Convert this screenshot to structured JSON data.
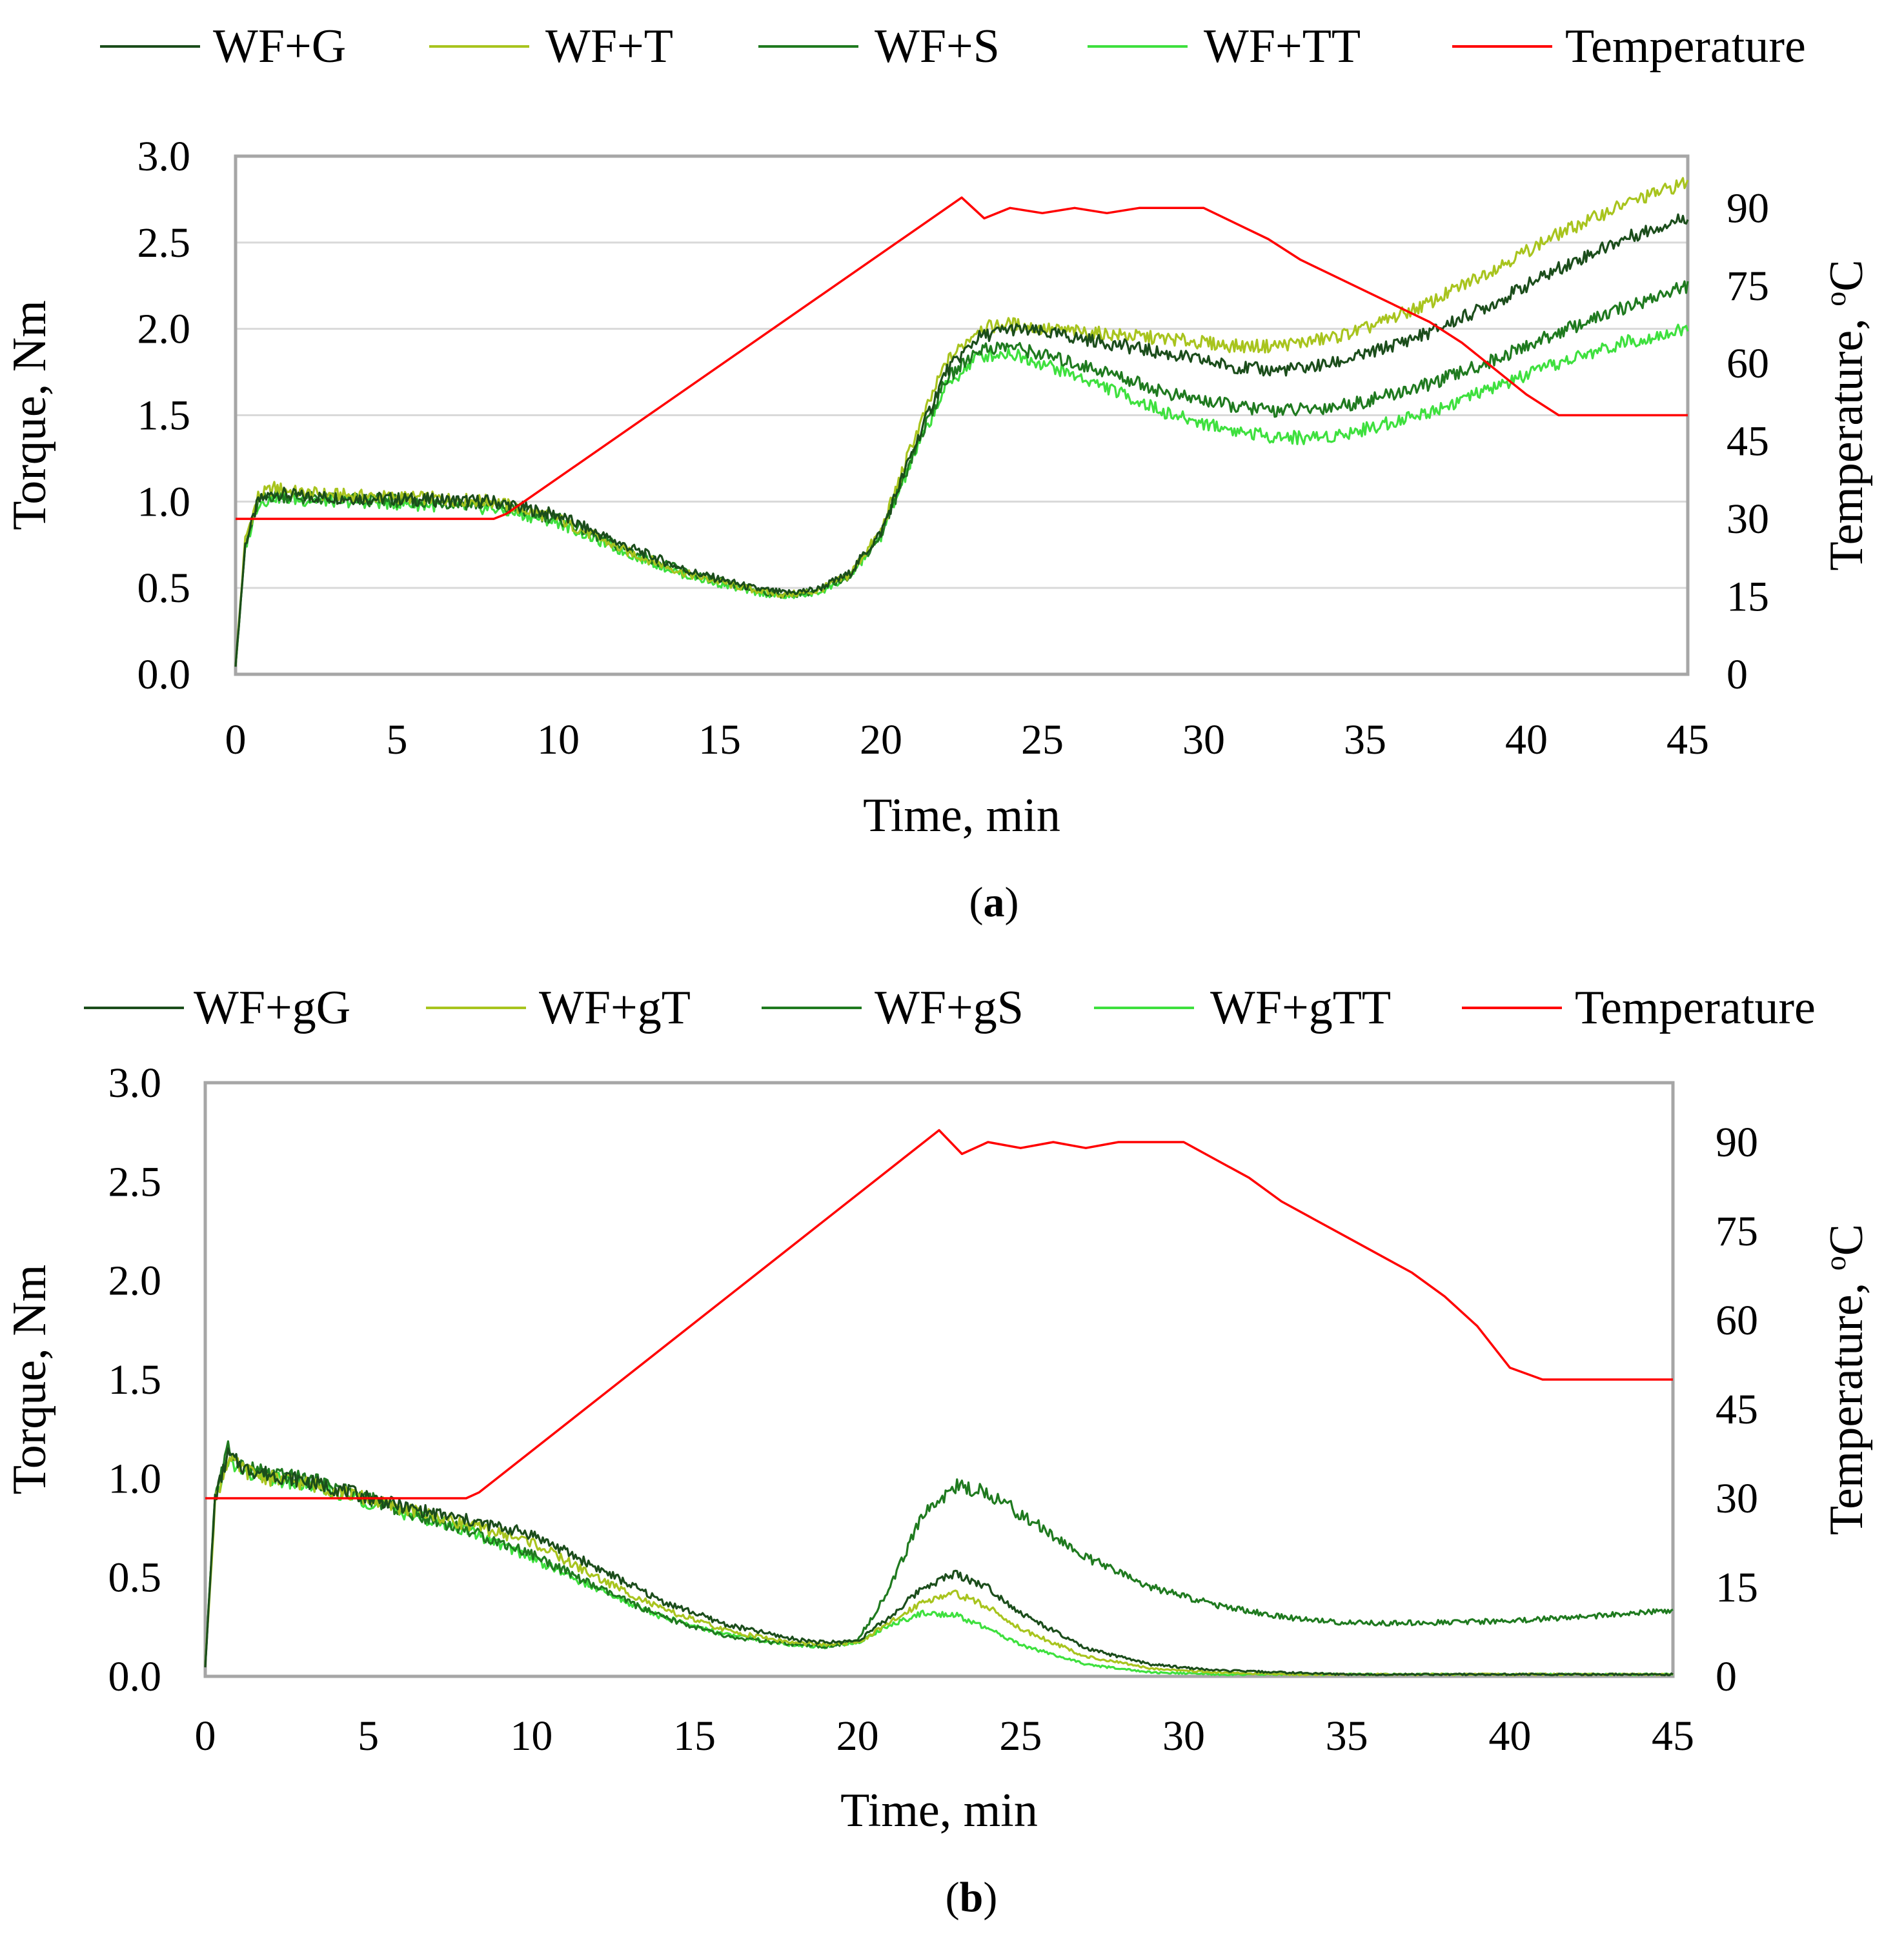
{
  "chart_data": [
    {
      "id": "a",
      "type": "line",
      "caption": [
        "(",
        "a",
        ")"
      ],
      "xlabel": "Time, min",
      "ylabel": "Torque, Nm",
      "ylabel2": "Temperature, ",
      "ylabel2_unit": "oC",
      "xlim": [
        0,
        45
      ],
      "ylim": [
        0,
        3
      ],
      "y2lim": [
        0,
        100
      ],
      "xticks": [
        "0",
        "5",
        "10",
        "15",
        "20",
        "25",
        "30",
        "35",
        "40",
        "45"
      ],
      "yticks": [
        "0.0",
        "0.5",
        "1.0",
        "1.5",
        "2.0",
        "2.5",
        "3.0"
      ],
      "y2ticks": [
        "0",
        "15",
        "30",
        "45",
        "60",
        "75",
        "90"
      ],
      "grid": true,
      "legend_position": "top",
      "series": [
        {
          "name": "WF+G",
          "color": "#1b4d1b",
          "axis": "left",
          "x": [
            0,
            0.3,
            0.7,
            1.2,
            2,
            4,
            6,
            8,
            10,
            12,
            14,
            16,
            17,
            18,
            19,
            20,
            21,
            22,
            23,
            24,
            25,
            27,
            29,
            31,
            32,
            33,
            34,
            35,
            37,
            39,
            41,
            43,
            45
          ],
          "y": [
            0.05,
            0.75,
            1.0,
            1.05,
            1.03,
            1.02,
            1.01,
            1.0,
            0.92,
            0.75,
            0.6,
            0.5,
            0.47,
            0.49,
            0.58,
            0.82,
            1.3,
            1.75,
            1.95,
            2.0,
            1.98,
            1.92,
            1.85,
            1.78,
            1.76,
            1.77,
            1.8,
            1.85,
            1.98,
            2.15,
            2.35,
            2.52,
            2.65
          ]
        },
        {
          "name": "WF+T",
          "color": "#a8c41e",
          "axis": "left",
          "x": [
            0,
            0.3,
            0.7,
            1.2,
            2,
            4,
            6,
            8,
            10,
            12,
            14,
            16,
            17,
            18,
            19,
            20,
            21,
            22,
            23,
            24,
            25,
            27,
            29,
            31,
            32,
            33,
            34,
            35,
            37,
            39,
            41,
            43,
            45
          ],
          "y": [
            0.05,
            0.78,
            1.03,
            1.08,
            1.05,
            1.03,
            1.02,
            1.0,
            0.9,
            0.72,
            0.58,
            0.49,
            0.46,
            0.48,
            0.57,
            0.83,
            1.35,
            1.8,
            2.0,
            2.03,
            2.0,
            1.97,
            1.94,
            1.9,
            1.9,
            1.92,
            1.95,
            2.0,
            2.15,
            2.35,
            2.55,
            2.72,
            2.85
          ]
        },
        {
          "name": "WF+S",
          "color": "#1f7a1f",
          "axis": "left",
          "x": [
            0,
            0.3,
            0.7,
            1.2,
            2,
            4,
            6,
            8,
            10,
            12,
            14,
            16,
            17,
            18,
            19,
            20,
            21,
            22,
            23,
            24,
            25,
            27,
            29,
            31,
            32,
            33,
            34,
            35,
            37,
            39,
            41,
            43,
            45
          ],
          "y": [
            0.05,
            0.74,
            1.0,
            1.04,
            1.02,
            1.01,
            1.0,
            0.98,
            0.9,
            0.73,
            0.59,
            0.49,
            0.46,
            0.48,
            0.57,
            0.81,
            1.28,
            1.7,
            1.88,
            1.9,
            1.85,
            1.75,
            1.62,
            1.55,
            1.53,
            1.53,
            1.55,
            1.58,
            1.68,
            1.82,
            1.98,
            2.12,
            2.25
          ]
        },
        {
          "name": "WF+TT",
          "color": "#3ee03e",
          "axis": "left",
          "x": [
            0,
            0.3,
            0.7,
            1.2,
            2,
            4,
            6,
            8,
            10,
            12,
            14,
            16,
            17,
            18,
            19,
            20,
            21,
            22,
            23,
            24,
            25,
            27,
            29,
            31,
            32,
            33,
            34,
            35,
            37,
            39,
            41,
            43,
            45
          ],
          "y": [
            0.05,
            0.73,
            0.99,
            1.03,
            1.01,
            1.0,
            0.98,
            0.96,
            0.88,
            0.71,
            0.57,
            0.48,
            0.45,
            0.47,
            0.56,
            0.8,
            1.26,
            1.66,
            1.84,
            1.86,
            1.8,
            1.66,
            1.5,
            1.41,
            1.38,
            1.37,
            1.38,
            1.42,
            1.52,
            1.66,
            1.8,
            1.92,
            2.0
          ]
        },
        {
          "name": "Temperature",
          "color": "#ff0000",
          "axis": "right",
          "x": [
            0,
            8,
            8.4,
            22.5,
            23.2,
            24,
            25,
            26,
            27,
            28,
            29,
            30,
            31,
            32,
            33,
            34,
            35,
            36,
            37,
            38,
            39,
            40,
            41,
            42,
            43,
            44,
            45
          ],
          "y": [
            30,
            30,
            31,
            92,
            88,
            90,
            89,
            90,
            89,
            90,
            90,
            90,
            87,
            84,
            80,
            77,
            74,
            71,
            68,
            64,
            59,
            54,
            50,
            50,
            50,
            50,
            50
          ]
        }
      ]
    },
    {
      "id": "b",
      "type": "line",
      "caption": [
        "(",
        "b",
        ")"
      ],
      "xlabel": "Time, min",
      "ylabel": "Torque, Nm",
      "ylabel2": "Temperature, ",
      "ylabel2_unit": "oC",
      "xlim": [
        0,
        45
      ],
      "ylim": [
        0,
        3
      ],
      "y2lim": [
        0,
        100
      ],
      "xticks": [
        "0",
        "5",
        "10",
        "15",
        "20",
        "25",
        "30",
        "35",
        "40",
        "45"
      ],
      "yticks": [
        "0.0",
        "0.5",
        "1.0",
        "1.5",
        "2.0",
        "2.5",
        "3.0"
      ],
      "y2ticks": [
        "0",
        "15",
        "30",
        "45",
        "60",
        "75",
        "90"
      ],
      "grid": false,
      "legend_position": "top",
      "series": [
        {
          "name": "WF+gG",
          "color": "#1b4d1b",
          "axis": "left",
          "x": [
            0,
            0.3,
            0.7,
            1.2,
            2,
            3,
            4,
            6,
            8,
            10,
            12,
            14,
            16,
            18,
            19,
            20,
            21,
            22,
            23,
            24,
            25,
            27,
            29,
            31,
            33,
            35,
            40,
            45
          ],
          "y": [
            0.05,
            0.9,
            1.12,
            1.05,
            1.02,
            0.99,
            0.95,
            0.86,
            0.79,
            0.72,
            0.55,
            0.38,
            0.26,
            0.19,
            0.17,
            0.18,
            0.3,
            0.45,
            0.52,
            0.45,
            0.32,
            0.14,
            0.06,
            0.03,
            0.02,
            0.01,
            0.01,
            0.01
          ]
        },
        {
          "name": "WF+gT",
          "color": "#a8c41e",
          "axis": "left",
          "x": [
            0,
            0.3,
            0.7,
            1.2,
            2,
            3,
            4,
            6,
            8,
            10,
            12,
            14,
            16,
            18,
            19,
            20,
            21,
            22,
            23,
            24,
            25,
            27,
            29,
            31,
            33,
            35,
            40,
            45
          ],
          "y": [
            0.05,
            0.88,
            1.1,
            1.04,
            1.0,
            0.98,
            0.94,
            0.85,
            0.77,
            0.68,
            0.5,
            0.34,
            0.23,
            0.17,
            0.16,
            0.17,
            0.27,
            0.38,
            0.42,
            0.35,
            0.24,
            0.1,
            0.04,
            0.02,
            0.01,
            0.01,
            0.01,
            0.01
          ]
        },
        {
          "name": "WF+gS",
          "color": "#1f7a1f",
          "axis": "left",
          "x": [
            0,
            0.3,
            0.7,
            1.2,
            2,
            3,
            4,
            6,
            8,
            10,
            12,
            14,
            16,
            18,
            19,
            20,
            21,
            22,
            23,
            24,
            25,
            27,
            29,
            31,
            33,
            35,
            37,
            40,
            43,
            45
          ],
          "y": [
            0.05,
            0.92,
            1.15,
            1.06,
            1.02,
            1.0,
            0.96,
            0.84,
            0.74,
            0.62,
            0.45,
            0.3,
            0.2,
            0.16,
            0.15,
            0.18,
            0.45,
            0.82,
            0.96,
            0.93,
            0.82,
            0.6,
            0.45,
            0.36,
            0.3,
            0.27,
            0.27,
            0.28,
            0.31,
            0.33
          ]
        },
        {
          "name": "WF+gTT",
          "color": "#3ee03e",
          "axis": "left",
          "x": [
            0,
            0.3,
            0.7,
            1.2,
            2,
            3,
            4,
            6,
            8,
            10,
            12,
            14,
            16,
            18,
            19,
            20,
            21,
            22,
            23,
            24,
            25,
            27,
            29,
            31,
            33,
            35,
            40,
            45
          ],
          "y": [
            0.05,
            0.9,
            1.08,
            1.03,
            1.0,
            0.97,
            0.93,
            0.83,
            0.74,
            0.6,
            0.44,
            0.3,
            0.21,
            0.16,
            0.15,
            0.17,
            0.26,
            0.32,
            0.31,
            0.24,
            0.16,
            0.06,
            0.02,
            0.01,
            0.01,
            0.01,
            0.01,
            0.01
          ]
        },
        {
          "name": "Temperature",
          "color": "#ff0000",
          "axis": "right",
          "x": [
            0,
            8,
            8.4,
            22.5,
            23.2,
            24,
            25,
            26,
            27,
            28,
            29,
            30,
            31,
            32,
            33,
            34,
            35,
            36,
            37,
            38,
            39,
            40,
            41,
            42,
            43,
            44,
            45
          ],
          "y": [
            30,
            30,
            31,
            92,
            88,
            90,
            89,
            90,
            89,
            90,
            90,
            90,
            87,
            84,
            80,
            77,
            74,
            71,
            68,
            64,
            59,
            52,
            50,
            50,
            50,
            50,
            50
          ]
        }
      ]
    }
  ]
}
